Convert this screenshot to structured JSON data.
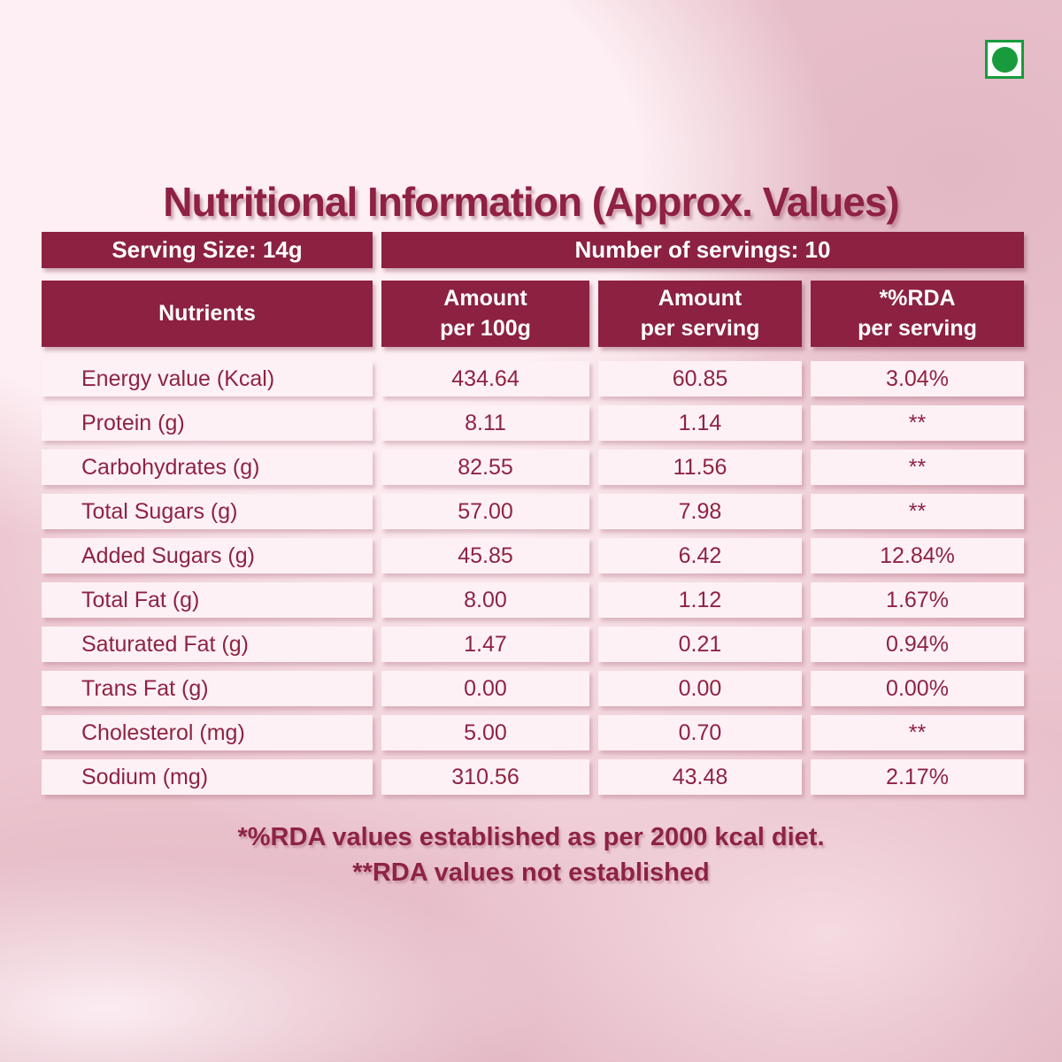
{
  "title": "Nutritional Information (Approx. Values)",
  "veg_mark": {
    "meaning": "vegetarian-mark",
    "color": "#189b3d"
  },
  "info_bar": {
    "serving_size": "Serving Size: 14g",
    "servings": "Number of servings: 10"
  },
  "table": {
    "headers": {
      "nutrients": "Nutrients",
      "per_100g": "Amount\nper 100g",
      "per_serving": "Amount\nper serving",
      "rda": "*%RDA\nper serving"
    },
    "rows": [
      {
        "nutrient": "Energy value (Kcal)",
        "per_100g": "434.64",
        "per_serving": "60.85",
        "rda": "3.04%"
      },
      {
        "nutrient": "Protein (g)",
        "per_100g": "8.11",
        "per_serving": "1.14",
        "rda": "**"
      },
      {
        "nutrient": "Carbohydrates (g)",
        "per_100g": "82.55",
        "per_serving": "11.56",
        "rda": "**"
      },
      {
        "nutrient": "Total Sugars (g)",
        "per_100g": "57.00",
        "per_serving": "7.98",
        "rda": "**"
      },
      {
        "nutrient": "Added Sugars (g)",
        "per_100g": "45.85",
        "per_serving": "6.42",
        "rda": "12.84%"
      },
      {
        "nutrient": "Total Fat (g)",
        "per_100g": "8.00",
        "per_serving": "1.12",
        "rda": "1.67%"
      },
      {
        "nutrient": "Saturated Fat (g)",
        "per_100g": "1.47",
        "per_serving": "0.21",
        "rda": "0.94%"
      },
      {
        "nutrient": "Trans Fat (g)",
        "per_100g": "0.00",
        "per_serving": "0.00",
        "rda": "0.00%"
      },
      {
        "nutrient": "Cholesterol (mg)",
        "per_100g": "5.00",
        "per_serving": "0.70",
        "rda": "**"
      },
      {
        "nutrient": "Sodium (mg)",
        "per_100g": "310.56",
        "per_serving": "43.48",
        "rda": "2.17%"
      }
    ]
  },
  "footnotes": {
    "line1": "*%RDA values established as per 2000 kcal diet.",
    "line2": "**RDA values not established"
  },
  "colors": {
    "maroon": "#8c2142",
    "cell_pink": "#fdf1f5",
    "veg_green": "#189b3d"
  }
}
